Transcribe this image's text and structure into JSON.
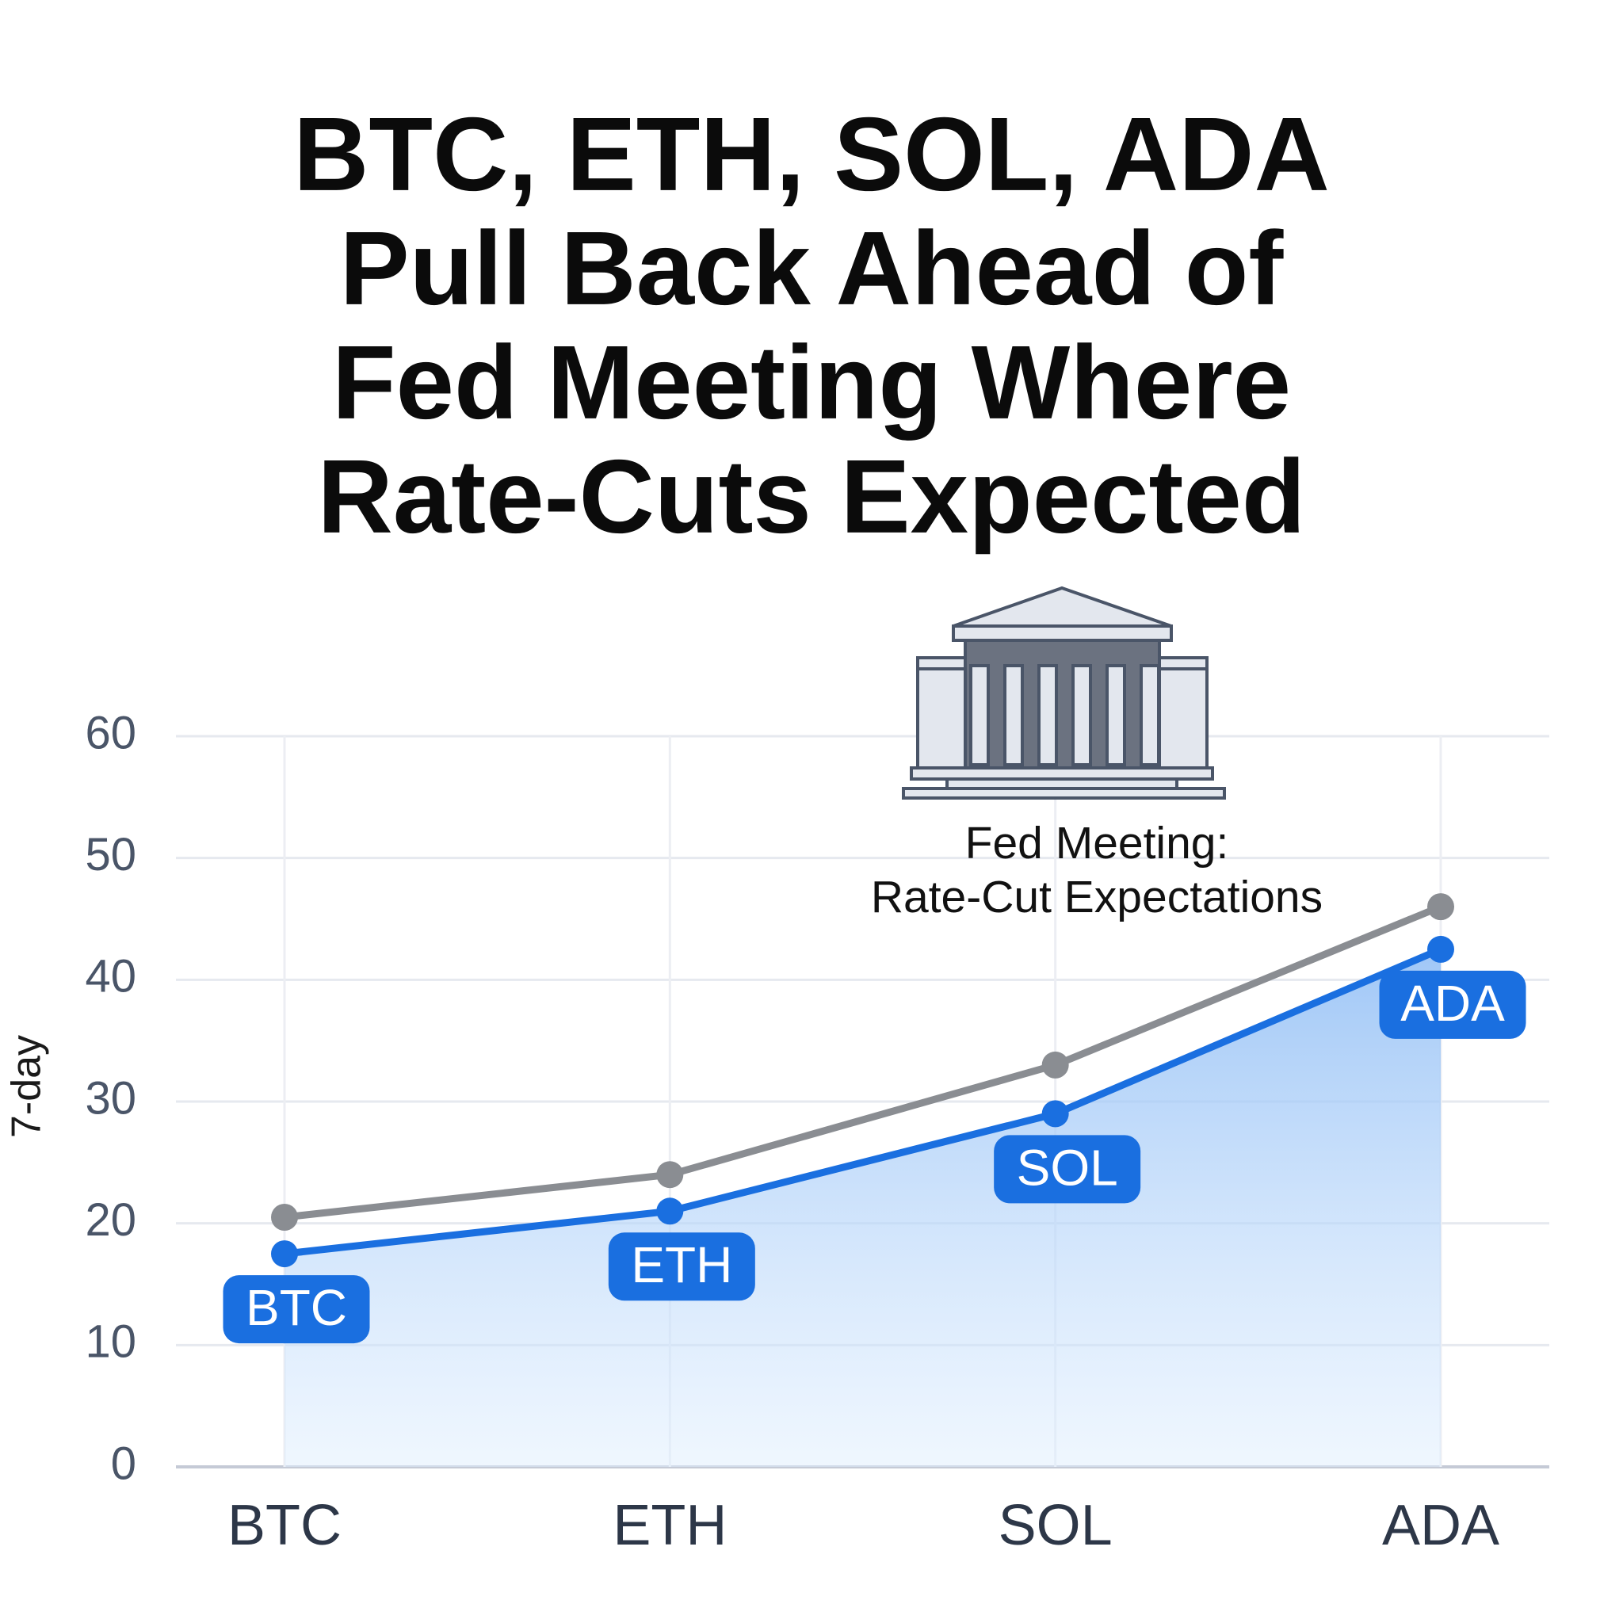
{
  "chart_data": {
    "type": "line",
    "title": [
      "BTC, ETH, SOL, ADA",
      "Pull Back Ahead of",
      "Fed Meeting Where",
      "Rate-Cuts Expected"
    ],
    "y_label": "7-day",
    "annotation": [
      "Fed Meeting:",
      "Rate-Cut Expectations"
    ],
    "categories": [
      "BTC",
      "ETH",
      "SOL",
      "ADA"
    ],
    "series": [
      {
        "color": "#8a8d92",
        "values": [
          20.5,
          24,
          33,
          46
        ]
      },
      {
        "color": "#1a6fe0",
        "values": [
          17.5,
          21,
          29,
          42.5
        ],
        "fill": true,
        "category_badges": true
      }
    ],
    "ylim": [
      0,
      60
    ],
    "yticks": [
      0,
      10,
      20,
      30,
      40,
      50,
      60
    ],
    "grid": true
  }
}
